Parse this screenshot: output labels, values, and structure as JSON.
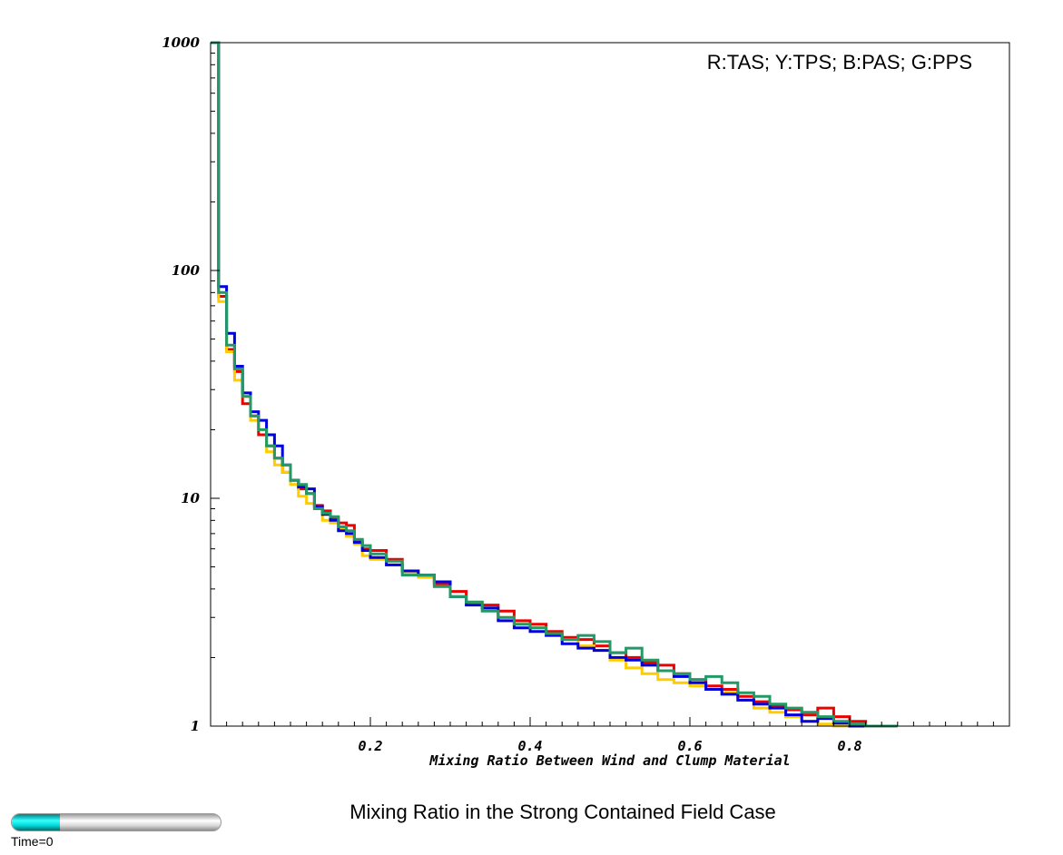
{
  "chart_data": {
    "type": "line",
    "step": true,
    "title": "Mixing Ratio in the Strong Contained Field Case",
    "xlabel": "Mixing Ratio Between Wind and Clump Material",
    "ylabel": "",
    "yscale": "log",
    "xlim": [
      0,
      1.0
    ],
    "ylim": [
      1,
      1000
    ],
    "x_ticks": [
      0.2,
      0.4,
      0.6,
      0.8
    ],
    "x_tick_labels": [
      "0.2",
      "0.4",
      "0.6",
      "0.8"
    ],
    "y_ticks": [
      1,
      10,
      100,
      1000
    ],
    "y_tick_labels": [
      "1",
      "10",
      "100",
      "1000"
    ],
    "grid": false,
    "legend": "R:TAS; Y:TPS; B:PAS; G:PPS",
    "legend_position": "top-right",
    "series": [
      {
        "color": "#ee0000",
        "x": [
          0.0,
          0.01,
          0.02,
          0.03,
          0.04,
          0.05,
          0.06,
          0.07,
          0.08,
          0.09,
          0.1,
          0.11,
          0.12,
          0.13,
          0.14,
          0.15,
          0.16,
          0.17,
          0.18,
          0.19,
          0.2,
          0.22,
          0.24,
          0.26,
          0.28,
          0.3,
          0.32,
          0.34,
          0.36,
          0.38,
          0.4,
          0.42,
          0.44,
          0.46,
          0.48,
          0.5,
          0.52,
          0.54,
          0.56,
          0.58,
          0.6,
          0.62,
          0.64,
          0.66,
          0.68,
          0.7,
          0.72,
          0.74,
          0.76,
          0.78,
          0.8,
          0.82
        ],
        "y": [
          1000,
          77,
          45,
          36,
          26,
          23,
          19,
          17,
          15,
          13,
          12,
          11,
          10.5,
          9.3,
          8.8,
          8.2,
          7.8,
          7.6,
          6.5,
          6.0,
          5.9,
          5.4,
          4.8,
          4.6,
          4.2,
          3.9,
          3.5,
          3.4,
          3.2,
          2.9,
          2.8,
          2.6,
          2.45,
          2.4,
          2.25,
          2.1,
          2.0,
          1.9,
          1.85,
          1.7,
          1.6,
          1.5,
          1.45,
          1.35,
          1.28,
          1.22,
          1.18,
          1.12,
          1.2,
          1.1,
          1.05,
          1.0
        ]
      },
      {
        "color": "#ffcc00",
        "x": [
          0.0,
          0.01,
          0.02,
          0.03,
          0.04,
          0.05,
          0.06,
          0.07,
          0.08,
          0.09,
          0.1,
          0.11,
          0.12,
          0.13,
          0.14,
          0.15,
          0.16,
          0.17,
          0.18,
          0.19,
          0.2,
          0.22,
          0.24,
          0.26,
          0.28,
          0.3,
          0.32,
          0.34,
          0.36,
          0.38,
          0.4,
          0.42,
          0.44,
          0.46,
          0.48,
          0.5,
          0.52,
          0.54,
          0.56,
          0.58,
          0.6,
          0.62,
          0.64,
          0.66,
          0.68,
          0.7,
          0.72,
          0.74,
          0.76,
          0.78,
          0.8
        ],
        "y": [
          1000,
          73,
          44,
          33,
          28,
          22,
          20,
          16,
          14,
          13,
          11.5,
          10.2,
          9.5,
          9.0,
          8.0,
          7.8,
          7.4,
          6.8,
          6.3,
          5.6,
          5.4,
          5.1,
          4.7,
          4.5,
          4.1,
          3.7,
          3.5,
          3.3,
          3.0,
          2.8,
          2.7,
          2.55,
          2.4,
          2.25,
          2.15,
          1.95,
          1.8,
          1.7,
          1.6,
          1.55,
          1.5,
          1.45,
          1.4,
          1.3,
          1.2,
          1.15,
          1.1,
          1.05,
          1.02,
          1.0,
          1.0
        ]
      },
      {
        "color": "#0000dd",
        "x": [
          0.0,
          0.01,
          0.02,
          0.03,
          0.04,
          0.05,
          0.06,
          0.07,
          0.08,
          0.09,
          0.1,
          0.11,
          0.12,
          0.13,
          0.14,
          0.15,
          0.16,
          0.17,
          0.18,
          0.19,
          0.2,
          0.22,
          0.24,
          0.26,
          0.28,
          0.3,
          0.32,
          0.34,
          0.36,
          0.38,
          0.4,
          0.42,
          0.44,
          0.46,
          0.48,
          0.5,
          0.52,
          0.54,
          0.56,
          0.58,
          0.6,
          0.62,
          0.64,
          0.66,
          0.68,
          0.7,
          0.72,
          0.74,
          0.76,
          0.78,
          0.8,
          0.82
        ],
        "y": [
          1000,
          85,
          53,
          38,
          29,
          24,
          22,
          19,
          17,
          14,
          12,
          11.2,
          11.0,
          9.2,
          8.5,
          8.0,
          7.2,
          7.0,
          6.4,
          5.9,
          5.5,
          5.1,
          4.8,
          4.6,
          4.3,
          3.7,
          3.4,
          3.3,
          2.9,
          2.7,
          2.6,
          2.5,
          2.3,
          2.2,
          2.15,
          2.0,
          1.95,
          1.85,
          1.75,
          1.65,
          1.55,
          1.45,
          1.38,
          1.3,
          1.25,
          1.2,
          1.12,
          1.05,
          1.08,
          1.03,
          1.0,
          1.0
        ]
      },
      {
        "color": "#229966",
        "x": [
          0.0,
          0.01,
          0.02,
          0.03,
          0.04,
          0.05,
          0.06,
          0.07,
          0.08,
          0.09,
          0.1,
          0.11,
          0.12,
          0.13,
          0.14,
          0.15,
          0.16,
          0.17,
          0.18,
          0.19,
          0.2,
          0.22,
          0.24,
          0.26,
          0.28,
          0.3,
          0.32,
          0.34,
          0.36,
          0.38,
          0.4,
          0.42,
          0.44,
          0.46,
          0.48,
          0.5,
          0.52,
          0.54,
          0.56,
          0.58,
          0.6,
          0.62,
          0.64,
          0.66,
          0.68,
          0.7,
          0.72,
          0.74,
          0.76,
          0.78,
          0.8,
          0.82,
          0.84
        ],
        "y": [
          1000,
          80,
          47,
          37,
          28,
          23,
          20,
          17,
          15,
          14,
          12,
          11.5,
          10.5,
          9.0,
          8.6,
          8.3,
          7.5,
          7.2,
          6.6,
          6.2,
          5.7,
          5.3,
          4.6,
          4.6,
          4.1,
          3.7,
          3.5,
          3.2,
          3.0,
          2.8,
          2.7,
          2.55,
          2.4,
          2.5,
          2.35,
          2.1,
          2.2,
          1.95,
          1.75,
          1.7,
          1.6,
          1.65,
          1.55,
          1.4,
          1.35,
          1.25,
          1.2,
          1.15,
          1.1,
          1.05,
          1.02,
          1.0,
          1.0
        ]
      }
    ]
  },
  "time_slider": {
    "label": "Time=0",
    "progress": 0.23
  }
}
